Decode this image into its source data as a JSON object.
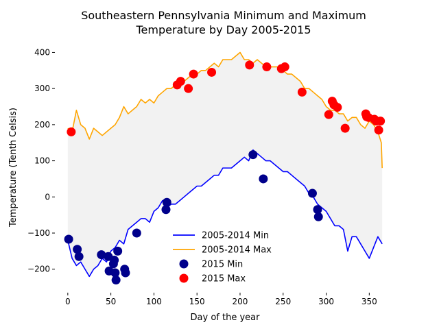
{
  "chart_data": {
    "type": "line",
    "title_line1": "Southeastern Pennsylvania Minimum and Maximum",
    "title_line2": "Temperature by Day 2005-2015",
    "xlabel": "Day of the year",
    "ylabel": "Temperature (Tenth Celsis)",
    "xlim": [
      -15,
      380
    ],
    "ylim": [
      -265,
      435
    ],
    "xticks": [
      0,
      50,
      100,
      150,
      200,
      250,
      300,
      350
    ],
    "yticks": [
      -200,
      -100,
      0,
      100,
      200,
      300,
      400
    ],
    "fill_between": true,
    "grid": false,
    "legend_position": "lower center",
    "colors": {
      "min_line": "#0000ff",
      "max_line": "#ffa500",
      "min_dots": "#00008b",
      "max_dots": "#ff0000",
      "fill": "#f2f2f2"
    },
    "series": [
      {
        "name": "2005-2014 Min",
        "kind": "line",
        "x": [
          0,
          5,
          10,
          15,
          20,
          25,
          30,
          35,
          40,
          45,
          50,
          55,
          60,
          65,
          70,
          75,
          80,
          85,
          90,
          95,
          100,
          105,
          110,
          115,
          120,
          125,
          130,
          135,
          140,
          145,
          150,
          155,
          160,
          165,
          170,
          175,
          180,
          185,
          190,
          195,
          200,
          205,
          210,
          215,
          220,
          225,
          230,
          235,
          240,
          245,
          250,
          255,
          260,
          265,
          270,
          275,
          280,
          285,
          290,
          295,
          300,
          305,
          310,
          315,
          320,
          325,
          330,
          335,
          340,
          345,
          350,
          355,
          360,
          365
        ],
        "values": [
          -120,
          -170,
          -190,
          -180,
          -200,
          -220,
          -200,
          -190,
          -170,
          -180,
          -150,
          -140,
          -120,
          -130,
          -90,
          -80,
          -70,
          -60,
          -60,
          -70,
          -40,
          -30,
          -10,
          -30,
          -20,
          -20,
          -10,
          0,
          10,
          20,
          30,
          30,
          40,
          50,
          60,
          60,
          80,
          80,
          80,
          90,
          100,
          110,
          100,
          130,
          120,
          110,
          100,
          100,
          90,
          80,
          70,
          70,
          60,
          50,
          40,
          30,
          10,
          0,
          -20,
          -30,
          -40,
          -60,
          -80,
          -80,
          -90,
          -150,
          -110,
          -110,
          -130,
          -150,
          -170,
          -140,
          -110,
          -130
        ]
      },
      {
        "name": "2005-2014 Max",
        "kind": "line",
        "x": [
          0,
          5,
          10,
          15,
          20,
          25,
          30,
          35,
          40,
          45,
          50,
          55,
          60,
          65,
          70,
          75,
          80,
          85,
          90,
          95,
          100,
          105,
          110,
          115,
          120,
          125,
          130,
          135,
          140,
          145,
          150,
          155,
          160,
          165,
          170,
          175,
          180,
          185,
          190,
          195,
          200,
          205,
          210,
          215,
          220,
          225,
          230,
          235,
          240,
          245,
          250,
          255,
          260,
          265,
          270,
          275,
          280,
          285,
          290,
          295,
          300,
          305,
          310,
          315,
          320,
          325,
          330,
          335,
          340,
          345,
          350,
          355,
          360,
          364,
          365
        ],
        "values": [
          190,
          180,
          240,
          200,
          190,
          160,
          190,
          180,
          170,
          180,
          190,
          200,
          220,
          250,
          230,
          240,
          250,
          270,
          260,
          270,
          260,
          280,
          290,
          300,
          300,
          310,
          320,
          320,
          330,
          340,
          340,
          350,
          350,
          360,
          370,
          360,
          380,
          380,
          380,
          390,
          400,
          380,
          380,
          370,
          380,
          370,
          360,
          360,
          360,
          360,
          350,
          340,
          340,
          330,
          320,
          300,
          300,
          290,
          280,
          270,
          250,
          240,
          240,
          230,
          230,
          210,
          220,
          220,
          200,
          190,
          210,
          200,
          180,
          150,
          80
        ]
      },
      {
        "name": "2015 Min",
        "kind": "scatter",
        "x": [
          1,
          11,
          13,
          39,
          47,
          48,
          53,
          54,
          55,
          56,
          58,
          66,
          67,
          80,
          114,
          115,
          215,
          227,
          284,
          290,
          291
        ],
        "values": [
          -117,
          -145,
          -165,
          -160,
          -165,
          -205,
          -185,
          -175,
          -210,
          -230,
          -150,
          -200,
          -210,
          -100,
          -35,
          -15,
          117,
          50,
          10,
          -35,
          -55
        ]
      },
      {
        "name": "2015 Max",
        "kind": "scatter",
        "x": [
          4,
          127,
          131,
          140,
          146,
          167,
          211,
          231,
          248,
          252,
          272,
          303,
          307,
          309,
          313,
          322,
          346,
          347,
          349,
          356,
          358,
          361,
          363
        ],
        "values": [
          180,
          310,
          320,
          300,
          340,
          345,
          365,
          360,
          355,
          360,
          290,
          228,
          265,
          255,
          248,
          190,
          230,
          222,
          220,
          215,
          210,
          185,
          210
        ]
      }
    ]
  }
}
